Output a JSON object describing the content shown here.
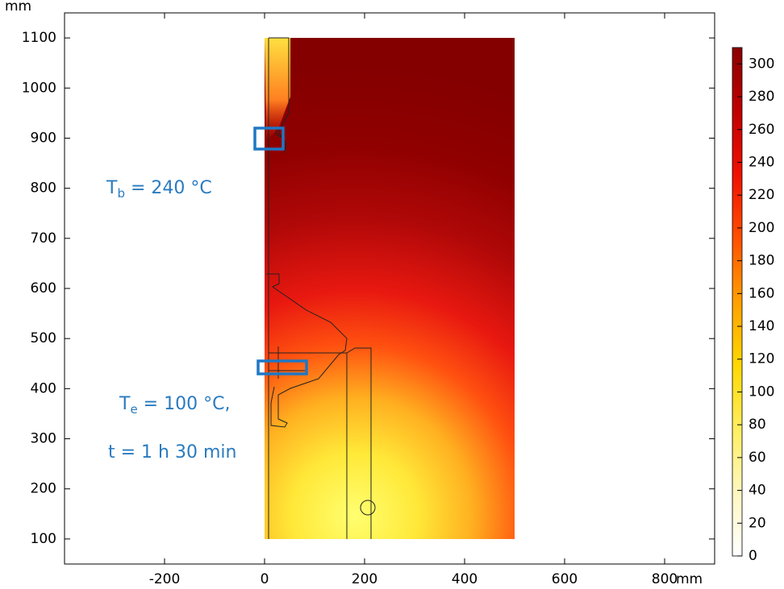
{
  "chart_data": {
    "type": "contour",
    "x_unit": "mm",
    "y_unit": "mm",
    "xlim": [
      -400,
      900
    ],
    "ylim": [
      50,
      1150
    ],
    "xticks": [
      -200,
      0,
      200,
      400,
      600,
      800
    ],
    "yticks": [
      100,
      200,
      300,
      400,
      500,
      600,
      700,
      800,
      900,
      1000,
      1100
    ],
    "colorbar": {
      "lim": [
        0,
        310
      ],
      "ticks": [
        0,
        20,
        40,
        60,
        80,
        100,
        120,
        140,
        160,
        180,
        200,
        220,
        240,
        260,
        280,
        300
      ],
      "colors": [
        "#ffffff",
        "#fff7c0",
        "#ffee60",
        "#ffd800",
        "#ffa000",
        "#ff5000",
        "#f01000",
        "#c00000",
        "#8a0000"
      ]
    },
    "annotations": [
      {
        "main": "T",
        "sub": "b",
        "rest": " = 240 °C"
      },
      {
        "main": "T",
        "sub": "e",
        "rest": " = 100 °C,"
      },
      {
        "main": "t = 1 h 30 min"
      }
    ]
  }
}
